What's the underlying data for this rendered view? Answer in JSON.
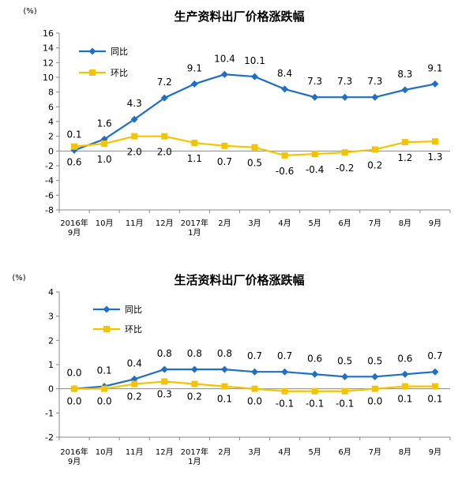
{
  "chart_data": [
    {
      "type": "line",
      "title": "生产资料出厂价格涨跌幅",
      "unit": "(%)",
      "categories": [
        "2016年\n9月",
        "10月",
        "11月",
        "12月",
        "2017年\n1月",
        "2月",
        "3月",
        "4月",
        "5月",
        "6月",
        "7月",
        "8月",
        "9月"
      ],
      "ylim": [
        -8,
        16
      ],
      "yticks": [
        16,
        14,
        12,
        10,
        8,
        6,
        4,
        2,
        0,
        -2,
        -4,
        -6,
        -8
      ],
      "grid": false,
      "legend_position": "top-left",
      "series": [
        {
          "name": "同比",
          "color": "#1f6fc5",
          "marker": "diamond",
          "values": [
            0.1,
            1.6,
            4.3,
            7.2,
            9.1,
            10.4,
            10.1,
            8.4,
            7.3,
            7.3,
            7.3,
            8.3,
            9.1
          ],
          "labels": [
            "0.1",
            "1.6",
            "4.3",
            "7.2",
            "9.1",
            "10.4",
            "10.1",
            "8.4",
            "7.3",
            "7.3",
            "7.3",
            "8.3",
            "9.1"
          ]
        },
        {
          "name": "环比",
          "color": "#f5c400",
          "marker": "square",
          "values": [
            0.6,
            1.0,
            2.0,
            2.0,
            1.1,
            0.7,
            0.5,
            -0.6,
            -0.4,
            -0.2,
            0.2,
            1.2,
            1.3
          ],
          "labels": [
            "0.6",
            "1.0",
            "2.0",
            "2.0",
            "1.1",
            "0.7",
            "0.5",
            "-0.6",
            "-0.4",
            "-0.2",
            "0.2",
            "1.2",
            "1.3"
          ]
        }
      ]
    },
    {
      "type": "line",
      "title": "生活资料出厂价格涨跌幅",
      "unit": "(%)",
      "categories": [
        "2016年\n9月",
        "10月",
        "11月",
        "12月",
        "2017年\n1月",
        "2月",
        "3月",
        "4月",
        "5月",
        "6月",
        "7月",
        "8月",
        "9月"
      ],
      "ylim": [
        -2,
        4
      ],
      "yticks": [
        4,
        3,
        2,
        1,
        0,
        -1,
        -2
      ],
      "grid": false,
      "legend_position": "top-left",
      "series": [
        {
          "name": "同比",
          "color": "#1f6fc5",
          "marker": "diamond",
          "values": [
            0.0,
            0.1,
            0.4,
            0.8,
            0.8,
            0.8,
            0.7,
            0.7,
            0.6,
            0.5,
            0.5,
            0.6,
            0.7
          ],
          "labels": [
            "0.0",
            "0.1",
            "0.4",
            "0.8",
            "0.8",
            "0.8",
            "0.7",
            "0.7",
            "0.6",
            "0.5",
            "0.5",
            "0.6",
            "0.7"
          ]
        },
        {
          "name": "环比",
          "color": "#f5c400",
          "marker": "square",
          "values": [
            0.0,
            0.0,
            0.2,
            0.3,
            0.2,
            0.1,
            0.0,
            -0.1,
            -0.1,
            -0.1,
            0.0,
            0.1,
            0.1
          ],
          "labels": [
            "0.0",
            "0.0",
            "0.2",
            "0.3",
            "0.2",
            "0.1",
            "0.0",
            "-0.1",
            "-0.1",
            "-0.1",
            "0.0",
            "0.1",
            "0.1"
          ]
        }
      ]
    }
  ]
}
